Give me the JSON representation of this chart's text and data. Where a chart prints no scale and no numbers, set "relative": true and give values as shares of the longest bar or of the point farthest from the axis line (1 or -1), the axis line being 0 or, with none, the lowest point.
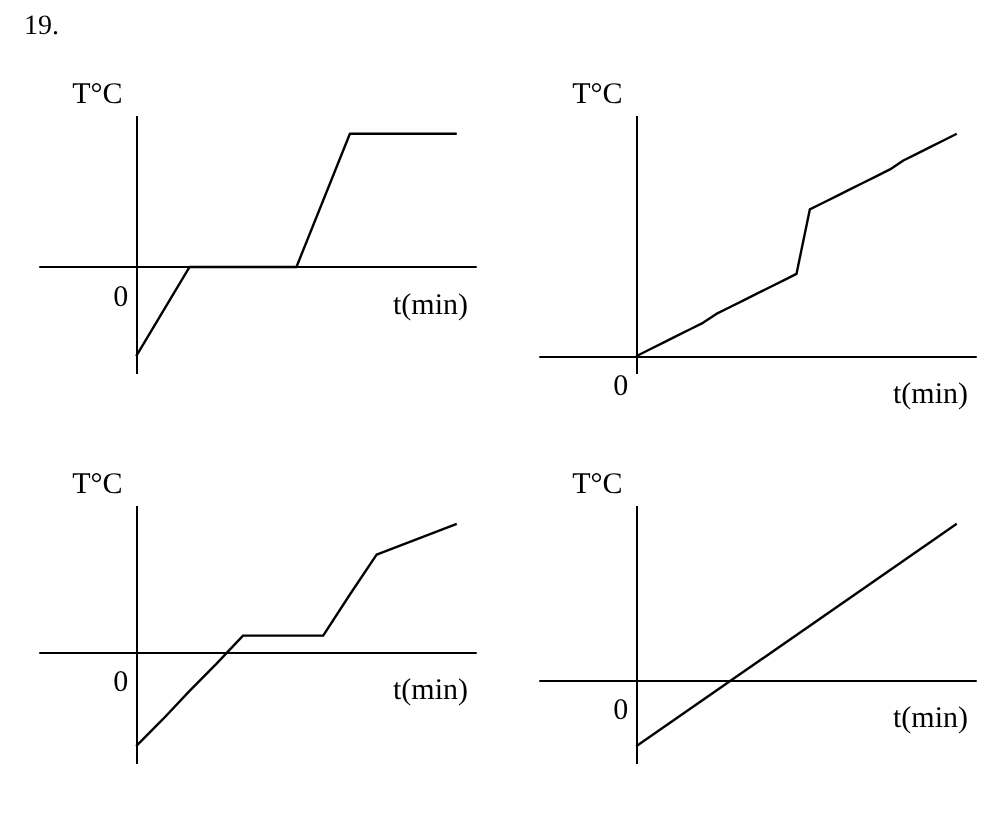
{
  "chart_data": [
    {
      "type": "line",
      "relative": true,
      "title": "19.",
      "annotations": [
        "0"
      ],
      "ylabel": "T°C",
      "xlabel": "t(min)",
      "categories": [
        null,
        null,
        null,
        null,
        null,
        null,
        null
      ],
      "marker": "none",
      "line_style": "solid",
      "series": [
        {
          "color": "#000000",
          "values": [
            -0.67,
            0,
            0,
            0,
            1,
            1,
            1
          ]
        }
      ]
    },
    {
      "type": "line",
      "relative": true,
      "annotations": [
        "0"
      ],
      "ylabel": "T°C",
      "xlabel": "t(min)",
      "categories": [
        null,
        null,
        null,
        null,
        null,
        null,
        null,
        null,
        null,
        null,
        null,
        null,
        null,
        null,
        null,
        null,
        null,
        null,
        null,
        null,
        null,
        null,
        null,
        null,
        null
      ],
      "marker": "none",
      "line_style": "solid",
      "series": [
        {
          "color": "#000000",
          "values": [
            0,
            0.03,
            0.06,
            0.09,
            0.12,
            0.15,
            0.19,
            0.22,
            0.25,
            0.28,
            0.31,
            0.34,
            0.37,
            0.66,
            0.69,
            0.72,
            0.75,
            0.78,
            0.81,
            0.84,
            0.88,
            0.91,
            0.94,
            0.97,
            1
          ]
        }
      ]
    },
    {
      "type": "line",
      "relative": true,
      "annotations": [
        "0"
      ],
      "ylabel": "T°C",
      "xlabel": "t(min)",
      "categories": [
        null,
        null,
        null,
        null,
        null,
        null,
        null,
        null,
        null,
        null,
        null,
        null,
        null
      ],
      "marker": "none",
      "line_style": "solid",
      "series": [
        {
          "color": "#000000",
          "values": [
            -0.73,
            -0.52,
            -0.3,
            -0.09,
            0.13,
            0.13,
            0.13,
            0.13,
            0.45,
            0.76,
            0.84,
            0.92,
            1
          ]
        }
      ]
    },
    {
      "type": "line",
      "relative": true,
      "annotations": [
        "0"
      ],
      "ylabel": "T°C",
      "xlabel": "t(min)",
      "categories": [
        null,
        null
      ],
      "marker": "none",
      "line_style": "solid",
      "series": [
        {
          "color": "#000000",
          "values": [
            -0.42,
            1
          ]
        }
      ]
    }
  ]
}
